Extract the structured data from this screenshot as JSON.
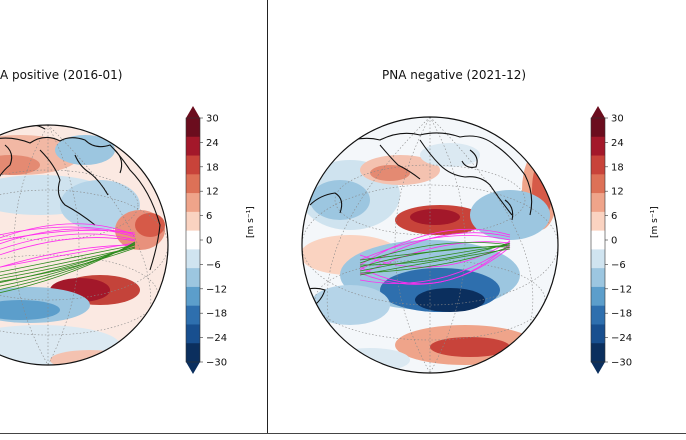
{
  "panels": [
    {
      "title": "A positive (2016-01)",
      "colorbar_label": "[m s⁻¹]"
    },
    {
      "title": "PNA negative (2021-12)",
      "colorbar_label": "[m s⁻¹]"
    }
  ],
  "colorbar": {
    "ticks": [
      "30",
      "24",
      "18",
      "12",
      "6",
      "0",
      "−6",
      "−12",
      "−18",
      "−24",
      "−30"
    ],
    "colors": [
      "#6b0d1e",
      "#a3182a",
      "#c8433a",
      "#dd7157",
      "#efa48a",
      "#fad3c1",
      "#ffffff",
      "#d0e4f0",
      "#9cc6e0",
      "#5c9ecb",
      "#2e6fae",
      "#184f8f",
      "#0b2f5e"
    ]
  },
  "colors": {
    "trajectory_magenta": "#ff2df0",
    "trajectory_green": "#2e8b1e",
    "coastline": "#111111"
  }
}
